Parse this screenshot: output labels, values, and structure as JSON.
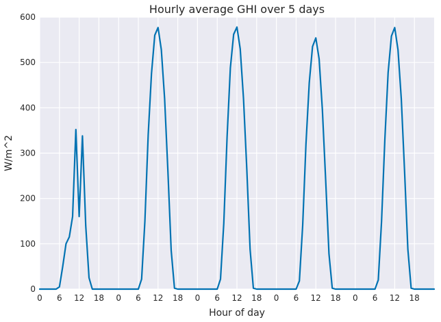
{
  "chart_data": {
    "type": "line",
    "title": "Hourly average GHI over 5 days",
    "xlabel": "Hour of day",
    "ylabel": "W/m^2",
    "xlim": [
      0,
      120
    ],
    "ylim": [
      0,
      600
    ],
    "grid": true,
    "x_ticks": [
      0,
      6,
      12,
      18,
      24,
      30,
      36,
      42,
      48,
      54,
      60,
      66,
      72,
      78,
      84,
      90,
      96,
      102,
      108,
      114
    ],
    "x_tick_labels": [
      "0",
      "6",
      "12",
      "18",
      "0",
      "6",
      "12",
      "18",
      "0",
      "6",
      "12",
      "18",
      "0",
      "6",
      "12",
      "18",
      "0",
      "6",
      "12",
      "18"
    ],
    "y_ticks": [
      0,
      100,
      200,
      300,
      400,
      500,
      600
    ],
    "y_tick_labels": [
      "0",
      "100",
      "200",
      "300",
      "400",
      "500",
      "600"
    ],
    "colors": {
      "series": "#0072b2",
      "plot_background": "#eaeaf2",
      "grid": "#ffffff"
    },
    "series": [
      {
        "values": [
          [
            0,
            0
          ],
          [
            1,
            0
          ],
          [
            2,
            0
          ],
          [
            3,
            0
          ],
          [
            4,
            0
          ],
          [
            5,
            0
          ],
          [
            6,
            5
          ],
          [
            7,
            50
          ],
          [
            8,
            100
          ],
          [
            9,
            115
          ],
          [
            10,
            160
          ],
          [
            11,
            352
          ],
          [
            12,
            160
          ],
          [
            13,
            338
          ],
          [
            14,
            140
          ],
          [
            15,
            25
          ],
          [
            16,
            0
          ],
          [
            17,
            0
          ],
          [
            18,
            0
          ],
          [
            19,
            0
          ],
          [
            20,
            0
          ],
          [
            21,
            0
          ],
          [
            22,
            0
          ],
          [
            23,
            0
          ],
          [
            24,
            0
          ],
          [
            25,
            0
          ],
          [
            26,
            0
          ],
          [
            27,
            0
          ],
          [
            28,
            0
          ],
          [
            29,
            0
          ],
          [
            30,
            0
          ],
          [
            31,
            22
          ],
          [
            32,
            150
          ],
          [
            33,
            340
          ],
          [
            34,
            475
          ],
          [
            35,
            560
          ],
          [
            36,
            577
          ],
          [
            37,
            528
          ],
          [
            38,
            420
          ],
          [
            39,
            260
          ],
          [
            40,
            85
          ],
          [
            41,
            2
          ],
          [
            42,
            0
          ],
          [
            43,
            0
          ],
          [
            44,
            0
          ],
          [
            45,
            0
          ],
          [
            46,
            0
          ],
          [
            47,
            0
          ],
          [
            48,
            0
          ],
          [
            49,
            0
          ],
          [
            50,
            0
          ],
          [
            51,
            0
          ],
          [
            52,
            0
          ],
          [
            53,
            0
          ],
          [
            54,
            0
          ],
          [
            55,
            22
          ],
          [
            56,
            145
          ],
          [
            57,
            335
          ],
          [
            58,
            488
          ],
          [
            59,
            562
          ],
          [
            60,
            578
          ],
          [
            61,
            530
          ],
          [
            62,
            420
          ],
          [
            63,
            265
          ],
          [
            64,
            88
          ],
          [
            65,
            2
          ],
          [
            66,
            0
          ],
          [
            67,
            0
          ],
          [
            68,
            0
          ],
          [
            69,
            0
          ],
          [
            70,
            0
          ],
          [
            71,
            0
          ],
          [
            72,
            0
          ],
          [
            73,
            0
          ],
          [
            74,
            0
          ],
          [
            75,
            0
          ],
          [
            76,
            0
          ],
          [
            77,
            0
          ],
          [
            78,
            0
          ],
          [
            79,
            18
          ],
          [
            80,
            140
          ],
          [
            81,
            320
          ],
          [
            82,
            455
          ],
          [
            83,
            535
          ],
          [
            84,
            554
          ],
          [
            85,
            508
          ],
          [
            86,
            395
          ],
          [
            87,
            240
          ],
          [
            88,
            78
          ],
          [
            89,
            2
          ],
          [
            90,
            0
          ],
          [
            91,
            0
          ],
          [
            92,
            0
          ],
          [
            93,
            0
          ],
          [
            94,
            0
          ],
          [
            95,
            0
          ],
          [
            96,
            0
          ],
          [
            97,
            0
          ],
          [
            98,
            0
          ],
          [
            99,
            0
          ],
          [
            100,
            0
          ],
          [
            101,
            0
          ],
          [
            102,
            0
          ],
          [
            103,
            20
          ],
          [
            104,
            150
          ],
          [
            105,
            330
          ],
          [
            106,
            478
          ],
          [
            107,
            558
          ],
          [
            108,
            577
          ],
          [
            109,
            528
          ],
          [
            110,
            420
          ],
          [
            111,
            260
          ],
          [
            112,
            88
          ],
          [
            113,
            2
          ],
          [
            114,
            0
          ],
          [
            115,
            0
          ],
          [
            116,
            0
          ],
          [
            117,
            0
          ],
          [
            118,
            0
          ],
          [
            119,
            0
          ],
          [
            120,
            0
          ]
        ]
      }
    ]
  }
}
